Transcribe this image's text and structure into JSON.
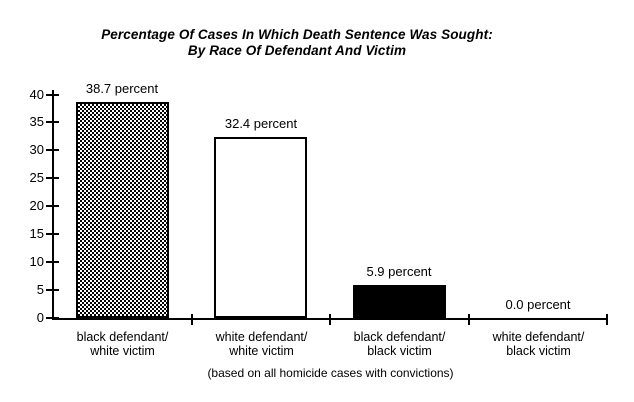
{
  "colors": {
    "foreground": "#000000",
    "background": "#ffffff"
  },
  "chart_data": {
    "type": "bar",
    "title": "Percentage Of Cases In Which Death Sentence Was Sought: By Race Of Defendant And Victim",
    "title_lines": [
      "Percentage Of Cases In Which Death Sentence Was Sought:",
      "By Race Of Defendant And Victim"
    ],
    "categories": [
      [
        "black defendant/",
        "white victim"
      ],
      [
        "white defendant/",
        "white victim"
      ],
      [
        "black defendant/",
        "black victim"
      ],
      [
        "white defendant/",
        "black victim"
      ]
    ],
    "values": [
      38.7,
      32.4,
      5.9,
      0.0
    ],
    "value_labels": [
      "38.7 percent",
      "32.4 percent",
      "5.9 percent",
      "0.0 percent"
    ],
    "bar_fills": [
      "checker-dither",
      "white",
      "black",
      "none"
    ],
    "yticks": [
      0,
      5,
      10,
      15,
      20,
      25,
      30,
      35,
      40
    ],
    "ylim": [
      0,
      40
    ],
    "xlabel": "",
    "ylabel": "",
    "grid": false,
    "legend": false,
    "footnote": "(based on all homicide cases with convictions)"
  }
}
